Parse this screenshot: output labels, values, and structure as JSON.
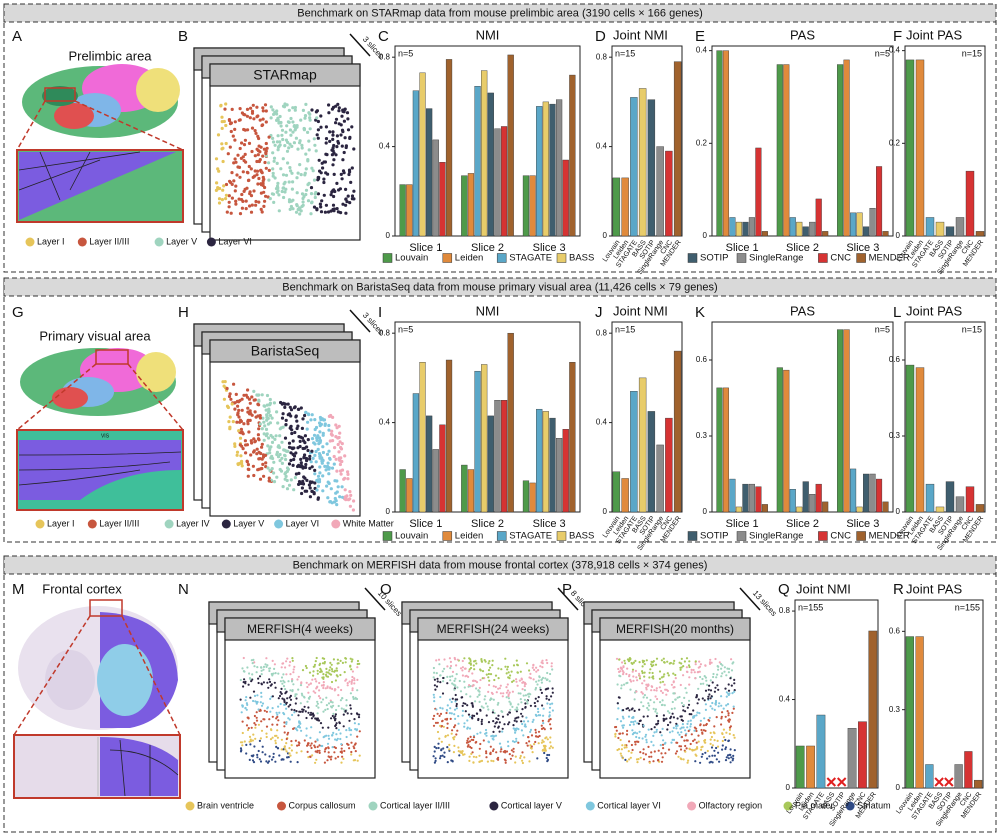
{
  "sections": [
    {
      "header": "Benchmark on STARmap data from mouse prelimbic area (3190 cells × 166 genes)",
      "panel_labels": [
        "A",
        "B",
        "C",
        "D",
        "E",
        "F"
      ],
      "region": "Prelimbic area",
      "slides": [
        {
          "title": "STARmap",
          "count": "3 slices"
        }
      ],
      "layers": [
        {
          "name": "Layer I",
          "color": "#e6c55a"
        },
        {
          "name": "Layer II/III",
          "color": "#c7563e"
        },
        {
          "name": "Layer V",
          "color": "#9fd4bf"
        },
        {
          "name": "Layer VI",
          "color": "#2b2540"
        }
      ]
    },
    {
      "header": "Benchmark on BaristaSeq data from mouse primary visual area (11,426 cells × 79 genes)",
      "panel_labels": [
        "G",
        "H",
        "I",
        "J",
        "K",
        "L"
      ],
      "region": "Primary visual area",
      "inset_label": "VIS",
      "slides": [
        {
          "title": "BaristaSeq",
          "count": "3 slices"
        }
      ],
      "layers": [
        {
          "name": "Layer I",
          "color": "#e6c55a"
        },
        {
          "name": "Layer II/III",
          "color": "#c7563e"
        },
        {
          "name": "Layer IV",
          "color": "#9fd4bf"
        },
        {
          "name": "Layer V",
          "color": "#2b2540"
        },
        {
          "name": "Layer VI",
          "color": "#7fc7de"
        },
        {
          "name": "White Matter",
          "color": "#f1a8b8"
        }
      ]
    },
    {
      "header": "Benchmark on MERFISH data from mouse frontal cortex (378,918 cells × 374 genes)",
      "panel_labels": [
        "M",
        "N",
        "O",
        "P",
        "Q",
        "R"
      ],
      "region": "Frontal cortex",
      "slides": [
        {
          "title": "MERFISH(4 weeks)",
          "count": "10 slices"
        },
        {
          "title": "MERFISH(24 weeks)",
          "count": "8 slices"
        },
        {
          "title": "MERFISH(20 months)",
          "count": "13 slices"
        }
      ],
      "layers": [
        {
          "name": "Brain ventricle",
          "color": "#e6c55a"
        },
        {
          "name": "Corpus callosum",
          "color": "#c7563e"
        },
        {
          "name": "Cortical layer II/III",
          "color": "#9fd4bf"
        },
        {
          "name": "Cortical layer V",
          "color": "#2b2540"
        },
        {
          "name": "Cortical layer VI",
          "color": "#7fc7de"
        },
        {
          "name": "Olfactory region",
          "color": "#f1a8b8"
        },
        {
          "name": "Pia mater",
          "color": "#a8c85a"
        },
        {
          "name": "Striatum",
          "color": "#2f4a85"
        }
      ]
    }
  ],
  "chart_data": [
    {
      "type": "bar",
      "title": "NMI",
      "annotation": "n=5",
      "categories": [
        "Slice 1",
        "Slice 2",
        "Slice 3"
      ],
      "series": [
        {
          "name": "Louvain",
          "color": "#4e9a4a",
          "values": [
            0.23,
            0.27,
            0.27
          ]
        },
        {
          "name": "Leiden",
          "color": "#e08a3c",
          "values": [
            0.23,
            0.28,
            0.27
          ]
        },
        {
          "name": "STAGATE",
          "color": "#5aa7c8",
          "values": [
            0.65,
            0.67,
            0.58
          ]
        },
        {
          "name": "BASS",
          "color": "#e8cc6a",
          "values": [
            0.73,
            0.74,
            0.6
          ]
        },
        {
          "name": "SOTIP",
          "color": "#3f5e6e",
          "values": [
            0.57,
            0.64,
            0.59
          ]
        },
        {
          "name": "SingleRange",
          "color": "#8c8c8c",
          "values": [
            0.43,
            0.48,
            0.61
          ]
        },
        {
          "name": "CNC",
          "color": "#d63333",
          "values": [
            0.33,
            0.49,
            0.34
          ]
        },
        {
          "name": "MENDER",
          "color": "#a0622d",
          "values": [
            0.79,
            0.81,
            0.72
          ]
        }
      ],
      "ylim": [
        0,
        0.85
      ],
      "yticks": [
        0,
        0.4,
        0.8
      ]
    },
    {
      "type": "bar",
      "title": "Joint NMI",
      "annotation": "n=15",
      "categories": [
        "Louvain",
        "Leiden",
        "STAGATE",
        "BASS",
        "SOTIP",
        "SingleRange",
        "CNC",
        "MENDER"
      ],
      "values": [
        0.26,
        0.26,
        0.62,
        0.66,
        0.61,
        0.4,
        0.38,
        0.78
      ],
      "colors": [
        "#4e9a4a",
        "#e08a3c",
        "#5aa7c8",
        "#e8cc6a",
        "#3f5e6e",
        "#8c8c8c",
        "#d63333",
        "#a0622d"
      ],
      "ylim": [
        0,
        0.85
      ],
      "yticks": [
        0,
        0.4,
        0.8
      ]
    },
    {
      "type": "bar",
      "title": "PAS",
      "annotation": "n=5",
      "categories": [
        "Slice 1",
        "Slice 2",
        "Slice 3"
      ],
      "series": [
        {
          "name": "Louvain",
          "color": "#4e9a4a",
          "values": [
            0.4,
            0.37,
            0.37
          ]
        },
        {
          "name": "Leiden",
          "color": "#e08a3c",
          "values": [
            0.4,
            0.37,
            0.38
          ]
        },
        {
          "name": "STAGATE",
          "color": "#5aa7c8",
          "values": [
            0.04,
            0.04,
            0.05
          ]
        },
        {
          "name": "BASS",
          "color": "#e8cc6a",
          "values": [
            0.03,
            0.03,
            0.05
          ]
        },
        {
          "name": "SOTIP",
          "color": "#3f5e6e",
          "values": [
            0.03,
            0.02,
            0.02
          ]
        },
        {
          "name": "SingleRange",
          "color": "#8c8c8c",
          "values": [
            0.04,
            0.03,
            0.06
          ]
        },
        {
          "name": "CNC",
          "color": "#d63333",
          "values": [
            0.19,
            0.08,
            0.15
          ]
        },
        {
          "name": "MENDER",
          "color": "#a0622d",
          "values": [
            0.01,
            0.01,
            0.01
          ]
        }
      ],
      "ylim": [
        0,
        0.41
      ],
      "yticks": [
        0,
        0.2,
        0.4
      ]
    },
    {
      "type": "bar",
      "title": "Joint PAS",
      "annotation": "n=15",
      "categories": [
        "Louvain",
        "Leiden",
        "STAGATE",
        "BASS",
        "SOTIP",
        "SingleRange",
        "CNC",
        "MENDER"
      ],
      "values": [
        0.38,
        0.38,
        0.04,
        0.03,
        0.02,
        0.04,
        0.14,
        0.01
      ],
      "colors": [
        "#4e9a4a",
        "#e08a3c",
        "#5aa7c8",
        "#e8cc6a",
        "#3f5e6e",
        "#8c8c8c",
        "#d63333",
        "#a0622d"
      ],
      "ylim": [
        0,
        0.41
      ],
      "yticks": [
        0,
        0.2,
        0.4
      ]
    },
    {
      "type": "bar",
      "title": "NMI",
      "annotation": "n=5",
      "categories": [
        "Slice 1",
        "Slice 2",
        "Slice 3"
      ],
      "series": [
        {
          "name": "Louvain",
          "color": "#4e9a4a",
          "values": [
            0.19,
            0.21,
            0.14
          ]
        },
        {
          "name": "Leiden",
          "color": "#e08a3c",
          "values": [
            0.15,
            0.19,
            0.13
          ]
        },
        {
          "name": "STAGATE",
          "color": "#5aa7c8",
          "values": [
            0.53,
            0.63,
            0.46
          ]
        },
        {
          "name": "BASS",
          "color": "#e8cc6a",
          "values": [
            0.67,
            0.66,
            0.45
          ]
        },
        {
          "name": "SOTIP",
          "color": "#3f5e6e",
          "values": [
            0.43,
            0.43,
            0.42
          ]
        },
        {
          "name": "SingleRange",
          "color": "#8c8c8c",
          "values": [
            0.28,
            0.5,
            0.33
          ]
        },
        {
          "name": "CNC",
          "color": "#d63333",
          "values": [
            0.39,
            0.5,
            0.37
          ]
        },
        {
          "name": "MENDER",
          "color": "#a0622d",
          "values": [
            0.68,
            0.8,
            0.67
          ]
        }
      ],
      "ylim": [
        0,
        0.85
      ],
      "yticks": [
        0,
        0.4,
        0.8
      ]
    },
    {
      "type": "bar",
      "title": "Joint NMI",
      "annotation": "n=15",
      "categories": [
        "Louvain",
        "Leiden",
        "STAGATE",
        "BASS",
        "SOTIP",
        "SingleRange",
        "CNC",
        "MENDER"
      ],
      "values": [
        0.18,
        0.15,
        0.54,
        0.6,
        0.45,
        0.3,
        0.42,
        0.72
      ],
      "colors": [
        "#4e9a4a",
        "#e08a3c",
        "#5aa7c8",
        "#e8cc6a",
        "#3f5e6e",
        "#8c8c8c",
        "#d63333",
        "#a0622d"
      ],
      "ylim": [
        0,
        0.85
      ],
      "yticks": [
        0,
        0.4,
        0.8
      ]
    },
    {
      "type": "bar",
      "title": "PAS",
      "annotation": "n=5",
      "categories": [
        "Slice 1",
        "Slice 2",
        "Slice 3"
      ],
      "series": [
        {
          "name": "Louvain",
          "color": "#4e9a4a",
          "values": [
            0.49,
            0.57,
            0.72
          ]
        },
        {
          "name": "Leiden",
          "color": "#e08a3c",
          "values": [
            0.49,
            0.56,
            0.72
          ]
        },
        {
          "name": "STAGATE",
          "color": "#5aa7c8",
          "values": [
            0.13,
            0.09,
            0.17
          ]
        },
        {
          "name": "BASS",
          "color": "#e8cc6a",
          "values": [
            0.02,
            0.02,
            0.02
          ]
        },
        {
          "name": "SOTIP",
          "color": "#3f5e6e",
          "values": [
            0.11,
            0.12,
            0.15
          ]
        },
        {
          "name": "SingleRange",
          "color": "#8c8c8c",
          "values": [
            0.11,
            0.07,
            0.15
          ]
        },
        {
          "name": "CNC",
          "color": "#d63333",
          "values": [
            0.1,
            0.11,
            0.13
          ]
        },
        {
          "name": "MENDER",
          "color": "#a0622d",
          "values": [
            0.03,
            0.04,
            0.04
          ]
        }
      ],
      "ylim": [
        0,
        0.75
      ],
      "yticks": [
        0,
        0.3,
        0.6
      ]
    },
    {
      "type": "bar",
      "title": "Joint PAS",
      "annotation": "n=15",
      "categories": [
        "Louvain",
        "Leiden",
        "STAGATE",
        "BASS",
        "SOTIP",
        "SingleRange",
        "CNC",
        "MENDER"
      ],
      "values": [
        0.58,
        0.57,
        0.11,
        0.02,
        0.12,
        0.06,
        0.1,
        0.03
      ],
      "colors": [
        "#4e9a4a",
        "#e08a3c",
        "#5aa7c8",
        "#e8cc6a",
        "#3f5e6e",
        "#8c8c8c",
        "#d63333",
        "#a0622d"
      ],
      "ylim": [
        0,
        0.75
      ],
      "yticks": [
        0,
        0.3,
        0.6
      ]
    },
    {
      "type": "bar",
      "title": "Joint NMI",
      "annotation": "n=155",
      "categories": [
        "Louvain",
        "Leiden",
        "STAGATE",
        "BASS",
        "SOTIP",
        "SingleRange",
        "CNC",
        "MENDER"
      ],
      "values": [
        0.19,
        0.19,
        0.33,
        null,
        null,
        0.27,
        0.3,
        0.71
      ],
      "colors": [
        "#4e9a4a",
        "#e08a3c",
        "#5aa7c8",
        "#e8cc6a",
        "#3f5e6e",
        "#8c8c8c",
        "#d63333",
        "#a0622d"
      ],
      "ylim": [
        0,
        0.85
      ],
      "yticks": [
        0,
        0.4,
        0.8
      ]
    },
    {
      "type": "bar",
      "title": "Joint PAS",
      "annotation": "n=155",
      "categories": [
        "Louvain",
        "Leiden",
        "STAGATE",
        "BASS",
        "SOTIP",
        "SingleRange",
        "CNC",
        "MENDER"
      ],
      "values": [
        0.58,
        0.58,
        0.09,
        null,
        null,
        0.09,
        0.14,
        0.03
      ],
      "colors": [
        "#4e9a4a",
        "#e08a3c",
        "#5aa7c8",
        "#e8cc6a",
        "#3f5e6e",
        "#8c8c8c",
        "#d63333",
        "#a0622d"
      ],
      "ylim": [
        0,
        0.72
      ],
      "yticks": [
        0,
        0.3,
        0.6
      ]
    }
  ]
}
